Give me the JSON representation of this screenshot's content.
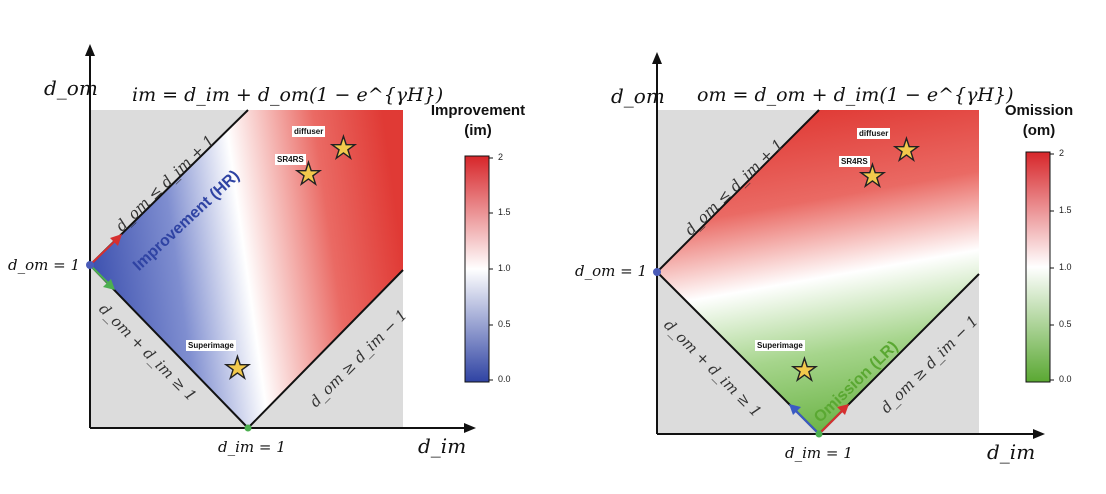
{
  "colors": {
    "improvement_low": "#3b4fae",
    "neutral": "#ffffff",
    "high": "#e03a35",
    "omission_low": "#6ab344",
    "gray_region": "#dcdcdc"
  },
  "left": {
    "formula": "im = d_im + d_om(1 − e^{γH})",
    "y_axis_label": "d_om",
    "x_axis_label": "d_im",
    "y_point_label": "d_om = 1",
    "x_point_label": "d_im = 1",
    "upper_line_label": "d_om ≤ d_im + 1",
    "lower_line_label": "d_om + d_im ≥ 1",
    "right_line_label": "d_om ≥ d_im − 1",
    "region_label": "Improvement (HR)",
    "colorbar_title_line1": "Improvement",
    "colorbar_title_line2": "(im)",
    "colorbar_ticks": [
      "2",
      "1.5",
      "1.0",
      "0.5",
      "0.0"
    ],
    "markers": [
      {
        "name": "diffuser",
        "label": "diffuser"
      },
      {
        "name": "sr4rs",
        "label": "SR4RS"
      },
      {
        "name": "superimage",
        "label": "Superimage"
      }
    ]
  },
  "right": {
    "formula": "om = d_om + d_im(1 − e^{γH})",
    "y_axis_label": "d_om",
    "x_axis_label": "d_im",
    "y_point_label": "d_om = 1",
    "x_point_label": "d_im = 1",
    "upper_line_label": "d_om ≤ d_im + 1",
    "lower_line_label": "d_om + d_im ≥ 1",
    "right_line_label": "d_om ≥ d_im − 1",
    "region_label": "Omission (LR)",
    "colorbar_title_line1": "Omission",
    "colorbar_title_line2": "(om)",
    "colorbar_ticks": [
      "2",
      "1.5",
      "1.0",
      "0.5",
      "0.0"
    ],
    "markers": [
      {
        "name": "diffuser",
        "label": "diffuser"
      },
      {
        "name": "sr4rs",
        "label": "SR4RS"
      },
      {
        "name": "superimage",
        "label": "Superimage"
      }
    ]
  }
}
